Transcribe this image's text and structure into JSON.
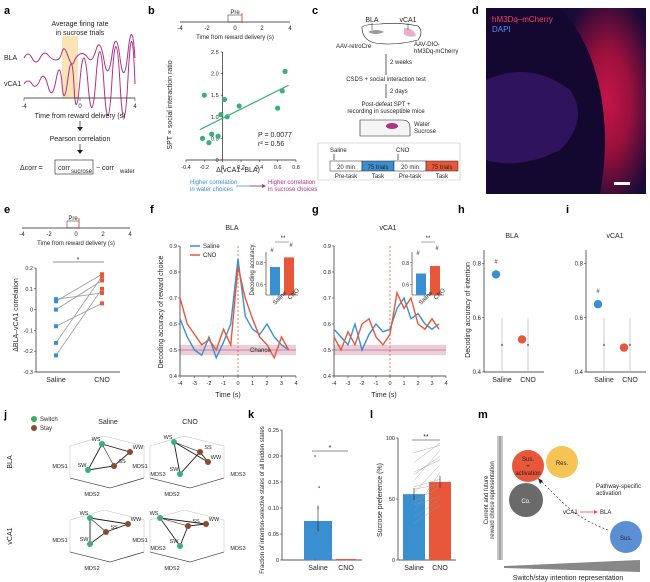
{
  "panels": {
    "a": "a",
    "b": "b",
    "c": "c",
    "d": "d",
    "e": "e",
    "f": "f",
    "g": "g",
    "h": "h",
    "i": "i",
    "j": "j",
    "k": "k",
    "l": "l",
    "m": "m"
  },
  "colors": {
    "saline": "#3a8fd0",
    "cno": "#e8573a",
    "green": "#3aaf7a",
    "magenta": "#b0308a",
    "pink": "#e0608a",
    "brown": "#8b4a2f",
    "orange": "#f0a35a",
    "gray": "#6a6a6a",
    "chance": "#d8a6b4"
  },
  "panel_a": {
    "title_line1": "Average firing rate",
    "title_line2": "in sucrose trials",
    "label_bla": "BLA",
    "label_vca1": "vCA1",
    "ticks": [
      "-4",
      "0",
      "4"
    ],
    "xlabel": "Time from reward delivery (s)",
    "method": "Pearson correlation",
    "eq_delta": "Δcorr =",
    "eq_corr": "corr",
    "eq_sub_sucrose": "sucrose",
    "eq_minus": "− corr",
    "eq_sub_water": "water"
  },
  "panel_b": {
    "pre_label": "Pre",
    "top_ticks": [
      "-4",
      "-2",
      "0",
      "2",
      "4"
    ],
    "top_xlabel": "Time from reward delivery (s)",
    "ylabel": "SPT × social interaction ratio",
    "yticks": [
      "0",
      "0.5",
      "1.0",
      "1.5",
      "2.0",
      "2.5"
    ],
    "xticks": [
      "-0.4",
      "-0.2",
      "0",
      "0.2",
      "0.4",
      "0.6",
      "0.8"
    ],
    "xlabel": "Δ(vCA1−BLA)",
    "p_text": "P = 0.0077",
    "r_text": "r² = 0.56",
    "left_note_1": "Higher correlation",
    "left_note_2": "in water choices",
    "right_note_1": "Higher correlation",
    "right_note_2": "in sucrose choices"
  },
  "panel_c": {
    "region_bla": "BLA",
    "region_vca1": "vCA1",
    "virus_left": "AAV-retroCre",
    "virus_right_1": "AAV-DIO-",
    "virus_right_2": "hM3Dq-mCherry",
    "step1": "2 weeks",
    "step2": "CSDS + social interaction test",
    "step3": "2 days",
    "step4_1": "Post-defeat SPT +",
    "step4_2": "recording in susceptible mice",
    "water": "Water",
    "sucrose": "Sucrose",
    "saline": "Saline",
    "cno": "CNO",
    "blocks": [
      "20 min",
      "75 trials",
      "20 min",
      "75 trials"
    ],
    "phases": [
      "Pre-task",
      "Task",
      "Pre-task",
      "Task"
    ]
  },
  "panel_d": {
    "label1": "hM3Dq–mCherry",
    "label2": "DAPI"
  },
  "panel_e": {
    "pre_label": "Pre",
    "top_ticks": [
      "-4",
      "-2",
      "0",
      "2",
      "4"
    ],
    "top_xlabel": "Time from reward delivery (s)",
    "ylabel": "ΔBLA–vCA1 correlation",
    "yticks": [
      "-0.3",
      "-0.2",
      "-0.1",
      "0",
      "0.1",
      "0.2"
    ],
    "xcats": [
      "Saline",
      "CNO"
    ],
    "sig": "*"
  },
  "panel_f": {
    "title": "BLA",
    "legend_saline": "Saline",
    "legend_cno": "CNO",
    "ylabel": "Decoding accuracy of reward choice",
    "yticks": [
      "0.4",
      "0.5",
      "0.6",
      "0.7",
      "0.8",
      "0.9"
    ],
    "xticks": [
      "-4",
      "-3",
      "-2",
      "-1",
      "0",
      "1",
      "2",
      "3",
      "4"
    ],
    "xlabel": "Time (s)",
    "chance": "Chance",
    "inset_ylabel": "Decoding accuracy",
    "inset_yticks": [
      "0.6",
      "0.8"
    ],
    "inset_x": [
      "Saline",
      "CNO"
    ],
    "inset_sig": "**",
    "inset_hash": "#"
  },
  "panel_g": {
    "title": "vCA1",
    "yticks": [
      "0.4",
      "0.5",
      "0.6",
      "0.7",
      "0.8",
      "0.9"
    ],
    "xticks": [
      "-4",
      "-3",
      "-2",
      "-1",
      "0",
      "1",
      "2",
      "3",
      "4"
    ],
    "xlabel": "Time (s)",
    "inset_yticks": [
      "0.6",
      "0.8"
    ],
    "inset_x": [
      "Saline",
      "CNO"
    ],
    "inset_sig": "**",
    "inset_hash": "#"
  },
  "panel_h": {
    "title": "BLA",
    "ylabel": "Decoding accuracy of intention",
    "yticks": [
      "0.4",
      "0.6",
      "0.8"
    ],
    "xcats": [
      "Saline",
      "CNO"
    ],
    "hash": "#"
  },
  "panel_i": {
    "title": "vCA1",
    "yticks": [
      "0.4",
      "0.6",
      "0.8"
    ],
    "xcats": [
      "Saline",
      "CNO"
    ],
    "hash": "#"
  },
  "panel_j": {
    "legend_switch": "Switch",
    "legend_stay": "Stay",
    "col_saline": "Saline",
    "col_cno": "CNO",
    "row_bla": "BLA",
    "row_vca1": "vCA1",
    "states": [
      "WS",
      "WW",
      "SW",
      "SS"
    ],
    "axes": [
      "MDS1",
      "MDS2",
      "MDS3"
    ]
  },
  "panel_k": {
    "ylabel": "Fraction of intention-selective states of all hidden states",
    "yticks": [
      "0",
      "0.05",
      "0.10",
      "0.15",
      "0.20",
      "0.25"
    ],
    "xcats": [
      "Saline",
      "CNO"
    ],
    "sig": "*"
  },
  "panel_l": {
    "ylabel": "Sucrose preference (%)",
    "yticks": [
      "0",
      "50",
      "100"
    ],
    "xcats": [
      "Saline",
      "CNO"
    ],
    "sig": "**"
  },
  "panel_m": {
    "ylabel_1": "Current and future",
    "ylabel_2": "reward choice representation",
    "xlabel": "Switch/stay intention representation",
    "c_sus_act_1": "Sus.",
    "c_sus_act_2": "+",
    "c_sus_act_3": "activation",
    "c_res": "Res.",
    "c_co": "Co.",
    "c_sus": "Sus.",
    "pathway_1": "Pathway-specific",
    "pathway_2": "activation",
    "vca1": "vCA1",
    "bla": "BLA"
  },
  "chart_data": [
    {
      "panel": "b",
      "type": "scatter",
      "xlabel": "Δ(vCA1−BLA)",
      "ylabel": "SPT × social interaction ratio",
      "xlim": [
        -0.4,
        0.8
      ],
      "ylim": [
        0,
        2.5
      ],
      "x": [
        -0.22,
        -0.2,
        -0.15,
        -0.12,
        -0.05,
        -0.02,
        0.02,
        0.05,
        0.18,
        0.6,
        0.65,
        0.68
      ],
      "y": [
        0.5,
        1.5,
        0.4,
        0.6,
        0.55,
        1.05,
        1.4,
        1.0,
        1.25,
        1.2,
        1.6,
        2.05
      ]
    },
    {
      "panel": "e",
      "type": "line",
      "xlabel": "",
      "ylabel": "ΔBLA–vCA1 correlation",
      "ylim": [
        -0.3,
        0.2
      ],
      "categories": [
        "Saline",
        "CNO"
      ],
      "series": [
        {
          "values": [
            -0.22,
            0.1
          ]
        },
        {
          "values": [
            -0.16,
            0.16
          ]
        },
        {
          "values": [
            -0.08,
            0.03
          ]
        },
        {
          "values": [
            0.0,
            0.14
          ]
        },
        {
          "values": [
            0.04,
            0.17
          ]
        },
        {
          "values": [
            0.05,
            0.08
          ]
        }
      ]
    },
    {
      "panel": "f",
      "type": "line",
      "title": "BLA",
      "xlabel": "Time (s)",
      "ylabel": "Decoding accuracy of reward choice",
      "ylim": [
        0.4,
        0.9
      ],
      "x": [
        -4,
        -3.5,
        -3,
        -2.5,
        -2,
        -1.5,
        -1,
        -0.5,
        0,
        0.5,
        1,
        1.5,
        2,
        2.5,
        3,
        3.5
      ],
      "series": [
        {
          "name": "Saline",
          "values": [
            0.62,
            0.55,
            0.5,
            0.48,
            0.55,
            0.47,
            0.53,
            0.6,
            0.85,
            0.63,
            0.58,
            0.56,
            0.6,
            0.55,
            0.52,
            0.5
          ]
        },
        {
          "name": "CNO",
          "values": [
            0.7,
            0.6,
            0.56,
            0.52,
            0.54,
            0.5,
            0.58,
            0.52,
            0.82,
            0.7,
            0.62,
            0.55,
            0.52,
            0.47,
            0.55,
            0.5
          ]
        }
      ]
    },
    {
      "panel": "f-inset",
      "type": "bar",
      "categories": [
        "Saline",
        "CNO"
      ],
      "values": [
        0.76,
        0.85
      ],
      "ylim": [
        0.5,
        0.9
      ]
    },
    {
      "panel": "g",
      "type": "line",
      "title": "vCA1",
      "xlabel": "Time (s)",
      "ylim": [
        0.4,
        0.9
      ],
      "x": [
        -4,
        -3.5,
        -3,
        -2.5,
        -2,
        -1.5,
        -1,
        -0.5,
        0,
        0.5,
        1,
        1.5,
        2,
        2.5,
        3,
        3.5
      ],
      "series": [
        {
          "name": "Saline",
          "values": [
            0.58,
            0.55,
            0.52,
            0.6,
            0.5,
            0.56,
            0.6,
            0.57,
            0.58,
            0.66,
            0.7,
            0.62,
            0.64,
            0.6,
            0.58,
            0.6
          ]
        },
        {
          "name": "CNO",
          "values": [
            0.55,
            0.5,
            0.57,
            0.52,
            0.6,
            0.62,
            0.55,
            0.52,
            0.56,
            0.72,
            0.66,
            0.7,
            0.6,
            0.58,
            0.62,
            0.58
          ]
        }
      ]
    },
    {
      "panel": "g-inset",
      "type": "bar",
      "categories": [
        "Saline",
        "CNO"
      ],
      "values": [
        0.7,
        0.77
      ],
      "ylim": [
        0.5,
        0.9
      ]
    },
    {
      "panel": "h",
      "type": "scatter",
      "title": "BLA",
      "ylabel": "Decoding accuracy of intention",
      "ylim": [
        0.4,
        0.85
      ],
      "categories": [
        "Saline",
        "CNO"
      ],
      "values": [
        0.76,
        0.52
      ],
      "chance": [
        0.5,
        0.5
      ]
    },
    {
      "panel": "i",
      "type": "scatter",
      "title": "vCA1",
      "ylim": [
        0.4,
        0.85
      ],
      "categories": [
        "Saline",
        "CNO"
      ],
      "values": [
        0.65,
        0.49
      ],
      "chance": [
        0.5,
        0.5
      ]
    },
    {
      "panel": "k",
      "type": "bar",
      "ylabel": "Fraction of intention-selective states of all hidden states",
      "ylim": [
        0,
        0.25
      ],
      "categories": [
        "Saline",
        "CNO"
      ],
      "values": [
        0.075,
        0.0
      ]
    },
    {
      "panel": "l",
      "type": "bar",
      "ylabel": "Sucrose preference (%)",
      "ylim": [
        0,
        100
      ],
      "categories": [
        "Saline",
        "CNO"
      ],
      "values": [
        54,
        64
      ]
    }
  ]
}
